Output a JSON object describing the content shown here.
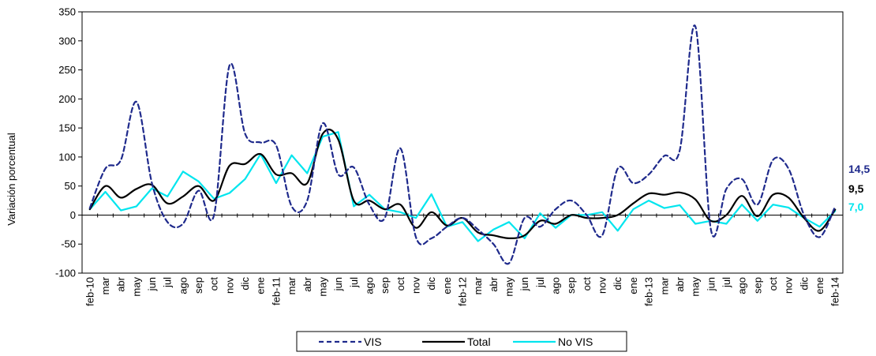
{
  "chart_data": {
    "type": "line",
    "ylabel": "Variación porcentual",
    "xlabel": "",
    "ylim": [
      -100,
      350
    ],
    "yticks": [
      -100,
      -50,
      0,
      50,
      100,
      150,
      200,
      250,
      300,
      350
    ],
    "grid": false,
    "legend_position": "bottom",
    "categories": [
      "feb-10",
      "mar",
      "abr",
      "may",
      "jun",
      "jul",
      "ago",
      "sep",
      "oct",
      "nov",
      "dic",
      "ene",
      "feb-11",
      "mar",
      "abr",
      "may",
      "jun",
      "jul",
      "ago",
      "sep",
      "oct",
      "nov",
      "dic",
      "ene",
      "feb-12",
      "mar",
      "abr",
      "may",
      "jun",
      "jul",
      "ago",
      "sep",
      "oct",
      "nov",
      "dic",
      "ene",
      "feb-13",
      "mar",
      "abr",
      "may",
      "jun",
      "jul",
      "ago",
      "sep",
      "oct",
      "nov",
      "dic",
      "ene",
      "feb-14"
    ],
    "series": [
      {
        "name": "VIS",
        "color": "#1f2a8c",
        "dash": "dashed",
        "end_label": "14,5",
        "values": [
          12,
          80,
          95,
          195,
          55,
          -12,
          -15,
          42,
          0,
          258,
          140,
          125,
          120,
          15,
          25,
          158,
          70,
          82,
          18,
          -5,
          115,
          -38,
          -40,
          -20,
          -5,
          -25,
          -50,
          -83,
          -5,
          -20,
          10,
          25,
          0,
          -35,
          80,
          55,
          70,
          102,
          112,
          325,
          -25,
          45,
          62,
          18,
          95,
          80,
          0,
          -38,
          14.5
        ]
      },
      {
        "name": "Total",
        "color": "#000000",
        "dash": "solid",
        "end_label": "9,5",
        "values": [
          10,
          50,
          30,
          45,
          52,
          20,
          32,
          50,
          25,
          85,
          88,
          105,
          70,
          72,
          55,
          140,
          130,
          25,
          25,
          10,
          18,
          -22,
          5,
          -18,
          -5,
          -30,
          -35,
          -40,
          -35,
          -10,
          -15,
          0,
          -5,
          -5,
          0,
          20,
          37,
          35,
          39,
          27,
          -10,
          0,
          33,
          -2,
          35,
          30,
          -5,
          -27,
          9.5
        ]
      },
      {
        "name": "No VIS",
        "color": "#00e5ee",
        "dash": "solid",
        "end_label": "7,0",
        "values": [
          10,
          40,
          8,
          15,
          46,
          32,
          75,
          58,
          28,
          38,
          62,
          105,
          55,
          103,
          72,
          135,
          143,
          15,
          35,
          10,
          5,
          -5,
          36,
          -20,
          -12,
          -45,
          -25,
          -12,
          -40,
          3,
          -22,
          0,
          0,
          5,
          -27,
          10,
          25,
          12,
          17,
          -15,
          -10,
          -15,
          18,
          -10,
          18,
          13,
          -5,
          -20,
          7.0
        ]
      }
    ]
  }
}
